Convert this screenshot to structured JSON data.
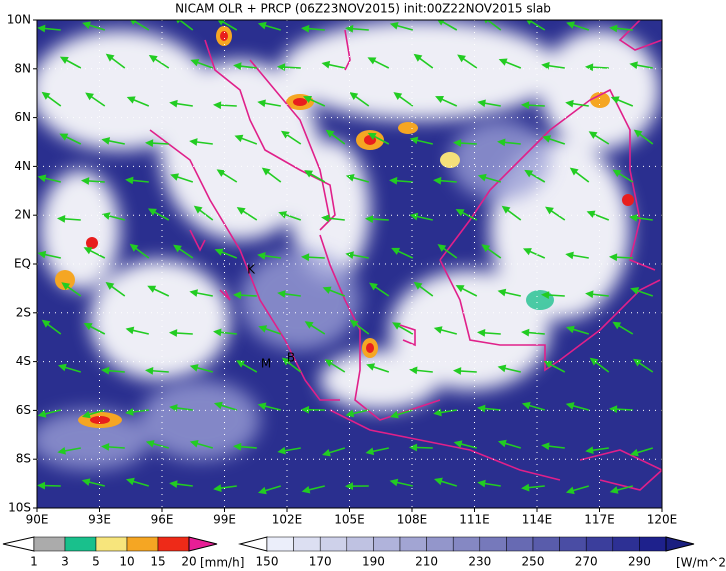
{
  "title": "NICAM OLR + PRCP (06Z23NOV2015) init:00Z22NOV2015 slab",
  "lat_labels": [
    "10N",
    "8N",
    "6N",
    "4N",
    "2N",
    "EQ",
    "2S",
    "4S",
    "6S",
    "8S",
    "10S"
  ],
  "lon_labels": [
    "90E",
    "93E",
    "96E",
    "99E",
    "102E",
    "105E",
    "108E",
    "111E",
    "114E",
    "117E",
    "120E"
  ],
  "places": [
    "K",
    "M",
    "B"
  ],
  "precip_legend": {
    "ticks": [
      "1",
      "3",
      "5",
      "10",
      "15",
      "20"
    ],
    "unit": "[mm/h]"
  },
  "olr_legend": {
    "ticks": [
      "150",
      "170",
      "190",
      "210",
      "230",
      "250",
      "270",
      "290"
    ],
    "unit": "[W/m^2]"
  }
}
